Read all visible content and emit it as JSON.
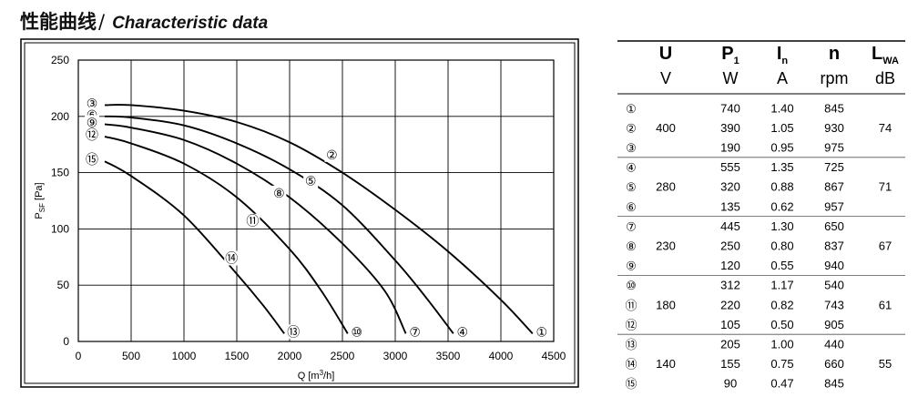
{
  "header": {
    "title_cn": "性能曲线",
    "separator": "/",
    "title_en": "Characteristic data"
  },
  "chart_data": {
    "type": "line",
    "xlabel": "Q [m³/h]",
    "ylabel": "PSF [Pa]",
    "xlim": [
      0,
      4500
    ],
    "ylim": [
      0,
      250
    ],
    "x_ticks": [
      0,
      500,
      1000,
      1500,
      2000,
      2500,
      3000,
      3500,
      4000,
      4500
    ],
    "y_ticks": [
      0,
      50,
      100,
      150,
      200,
      250
    ],
    "grid": true,
    "series": [
      {
        "name": "②",
        "ends": [
          "③",
          "①"
        ],
        "values": [
          [
            250,
            210
          ],
          [
            500,
            210
          ],
          [
            1000,
            205
          ],
          [
            1500,
            195
          ],
          [
            2000,
            177
          ],
          [
            2500,
            150
          ],
          [
            3000,
            117
          ],
          [
            3500,
            80
          ],
          [
            4000,
            37
          ],
          [
            4300,
            7
          ]
        ]
      },
      {
        "name": "⑤",
        "ends": [
          "⑥",
          "④"
        ],
        "values": [
          [
            250,
            200
          ],
          [
            500,
            199
          ],
          [
            1000,
            192
          ],
          [
            1500,
            176
          ],
          [
            2000,
            153
          ],
          [
            2500,
            121
          ],
          [
            3000,
            72
          ],
          [
            3300,
            38
          ],
          [
            3550,
            7
          ]
        ]
      },
      {
        "name": "⑧",
        "ends": [
          "⑨",
          "⑦"
        ],
        "values": [
          [
            250,
            193
          ],
          [
            500,
            190
          ],
          [
            1000,
            179
          ],
          [
            1500,
            158
          ],
          [
            2000,
            128
          ],
          [
            2500,
            87
          ],
          [
            2900,
            45
          ],
          [
            3100,
            7
          ]
        ]
      },
      {
        "name": "⑪",
        "ends": [
          "⑫",
          "⑩"
        ],
        "values": [
          [
            250,
            182
          ],
          [
            500,
            176
          ],
          [
            1000,
            158
          ],
          [
            1500,
            128
          ],
          [
            2000,
            82
          ],
          [
            2300,
            45
          ],
          [
            2550,
            7
          ]
        ]
      },
      {
        "name": "⑭",
        "ends": [
          "⑮",
          "⑬"
        ],
        "values": [
          [
            250,
            160
          ],
          [
            500,
            147
          ],
          [
            1000,
            112
          ],
          [
            1500,
            60
          ],
          [
            1750,
            32
          ],
          [
            1950,
            7
          ]
        ]
      }
    ],
    "labels": [
      {
        "text": "②",
        "x": 2400,
        "y": 166
      },
      {
        "text": "⑤",
        "x": 2200,
        "y": 143
      },
      {
        "text": "⑧",
        "x": 1900,
        "y": 132
      },
      {
        "text": "⑪",
        "x": 1650,
        "y": 107
      },
      {
        "text": "⑭",
        "x": 1450,
        "y": 74
      }
    ]
  },
  "table": {
    "headers": [
      {
        "sym": "U",
        "sub": "",
        "unit": "V"
      },
      {
        "sym": "P",
        "sub": "1",
        "unit": "W"
      },
      {
        "sym": "I",
        "sub": "n",
        "unit": "A"
      },
      {
        "sym": "n",
        "sub": "",
        "unit": "rpm"
      },
      {
        "sym": "L",
        "sub": "WA",
        "unit": "dB"
      }
    ],
    "groups": [
      {
        "u": "400",
        "lwa": "74",
        "rows": [
          {
            "id": "①",
            "p1": "740",
            "in": "1.40",
            "n": "845"
          },
          {
            "id": "②",
            "p1": "390",
            "in": "1.05",
            "n": "930"
          },
          {
            "id": "③",
            "p1": "190",
            "in": "0.95",
            "n": "975"
          }
        ]
      },
      {
        "u": "280",
        "lwa": "71",
        "rows": [
          {
            "id": "④",
            "p1": "555",
            "in": "1.35",
            "n": "725"
          },
          {
            "id": "⑤",
            "p1": "320",
            "in": "0.88",
            "n": "867"
          },
          {
            "id": "⑥",
            "p1": "135",
            "in": "0.62",
            "n": "957"
          }
        ]
      },
      {
        "u": "230",
        "lwa": "67",
        "rows": [
          {
            "id": "⑦",
            "p1": "445",
            "in": "1.30",
            "n": "650"
          },
          {
            "id": "⑧",
            "p1": "250",
            "in": "0.80",
            "n": "837"
          },
          {
            "id": "⑨",
            "p1": "120",
            "in": "0.55",
            "n": "940"
          }
        ]
      },
      {
        "u": "180",
        "lwa": "61",
        "rows": [
          {
            "id": "⑩",
            "p1": "312",
            "in": "1.17",
            "n": "540"
          },
          {
            "id": "⑪",
            "p1": "220",
            "in": "0.82",
            "n": "743"
          },
          {
            "id": "⑫",
            "p1": "105",
            "in": "0.50",
            "n": "905"
          }
        ]
      },
      {
        "u": "140",
        "lwa": "55",
        "rows": [
          {
            "id": "⑬",
            "p1": "205",
            "in": "1.00",
            "n": "440"
          },
          {
            "id": "⑭",
            "p1": "155",
            "in": "0.75",
            "n": "660"
          },
          {
            "id": "⑮",
            "p1": "90",
            "in": "0.47",
            "n": "845"
          }
        ]
      }
    ]
  }
}
